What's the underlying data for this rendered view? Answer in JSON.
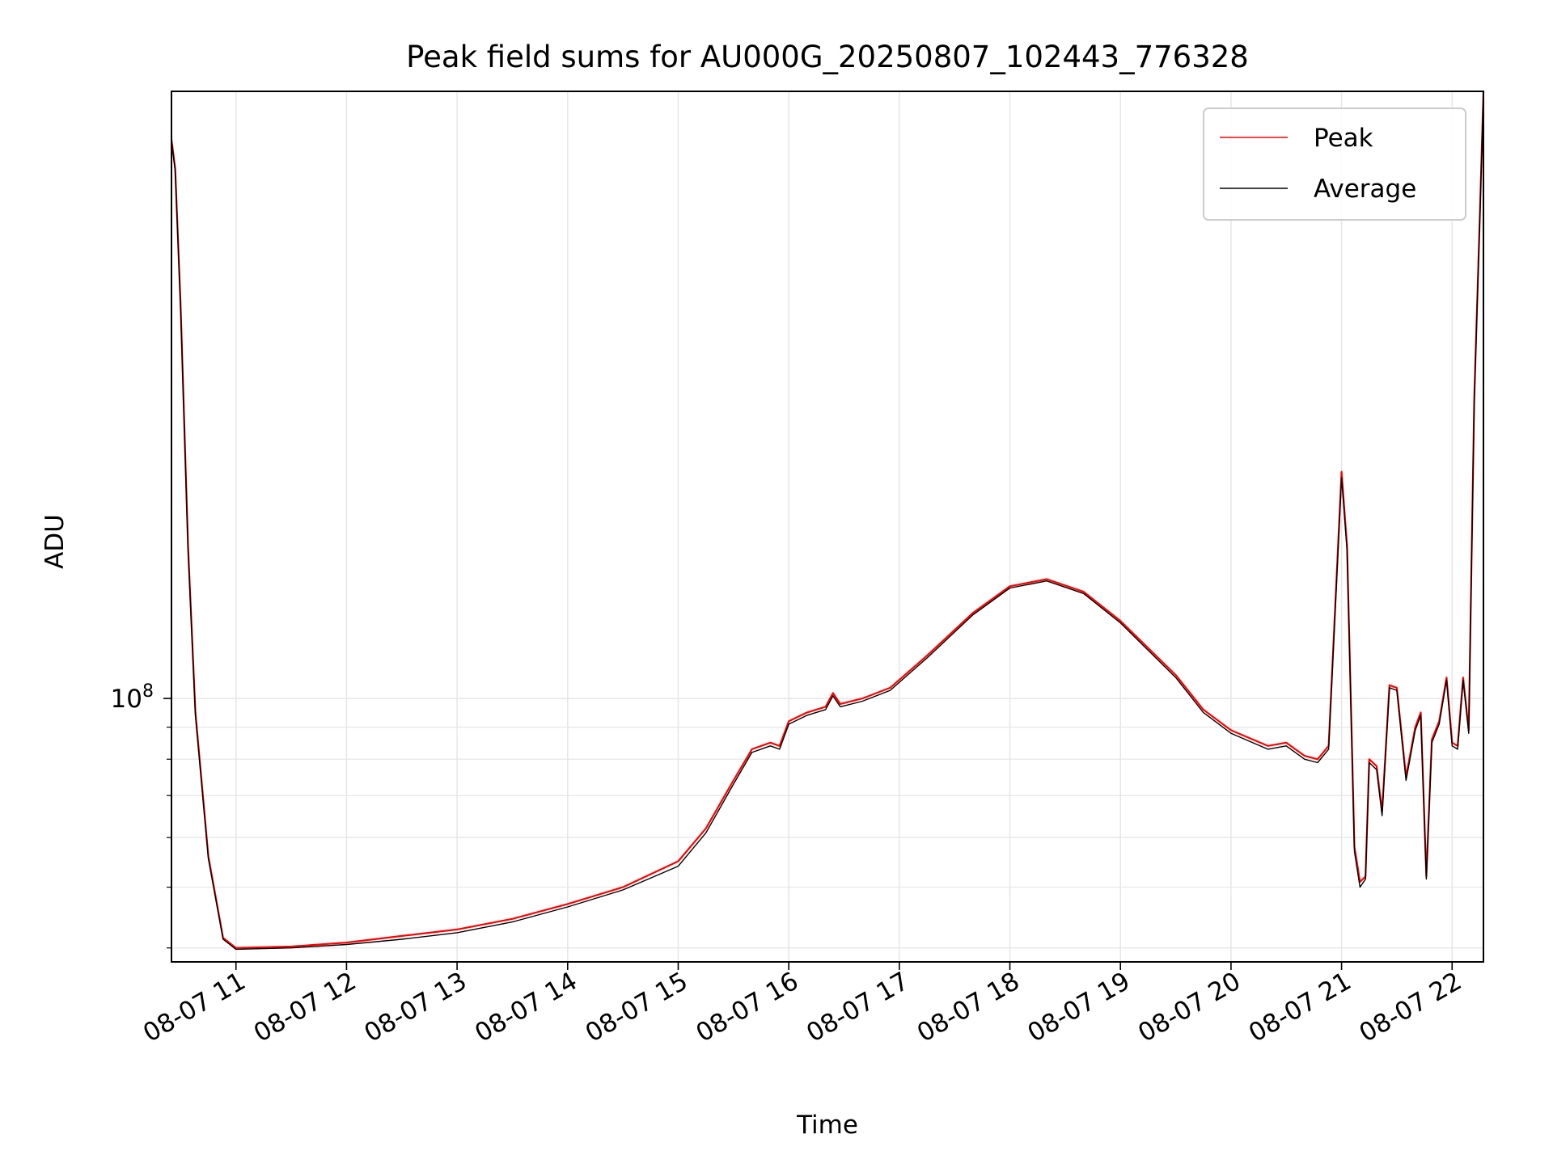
{
  "chart_data": {
    "type": "line",
    "title": "Peak field sums for AU000G_20250807_102443_776328",
    "xlabel": "Time",
    "ylabel": "ADU",
    "y_scale": "log",
    "xlim": [
      "2025-08-07T10:25",
      "2025-08-07T22:17"
    ],
    "ylim": [
      38000000,
      930000000
    ],
    "x_ticks": [
      "2025-08-07T11:00",
      "2025-08-07T12:00",
      "2025-08-07T13:00",
      "2025-08-07T14:00",
      "2025-08-07T15:00",
      "2025-08-07T16:00",
      "2025-08-07T17:00",
      "2025-08-07T18:00",
      "2025-08-07T19:00",
      "2025-08-07T20:00",
      "2025-08-07T21:00",
      "2025-08-07T22:00"
    ],
    "x_tick_labels": [
      "08-07 11",
      "08-07 12",
      "08-07 13",
      "08-07 14",
      "08-07 15",
      "08-07 16",
      "08-07 17",
      "08-07 18",
      "08-07 19",
      "08-07 20",
      "08-07 21",
      "08-07 22"
    ],
    "y_major_ticks": [
      100000000
    ],
    "y_major_tick_labels": [
      {
        "base": "10",
        "exp": "8"
      }
    ],
    "y_minor_ticks": [
      40000000,
      50000000,
      60000000,
      70000000,
      80000000,
      90000000
    ],
    "grid": true,
    "legend_position": "top-right",
    "series": [
      {
        "name": "Peak",
        "color": "#ff0000",
        "x": [
          "2025-08-07T10:25",
          "2025-08-07T10:27",
          "2025-08-07T10:30",
          "2025-08-07T10:34",
          "2025-08-07T10:38",
          "2025-08-07T10:45",
          "2025-08-07T10:53",
          "2025-08-07T11:00",
          "2025-08-07T11:30",
          "2025-08-07T12:00",
          "2025-08-07T12:30",
          "2025-08-07T13:00",
          "2025-08-07T13:30",
          "2025-08-07T14:00",
          "2025-08-07T14:30",
          "2025-08-07T15:00",
          "2025-08-07T15:15",
          "2025-08-07T15:30",
          "2025-08-07T15:40",
          "2025-08-07T15:50",
          "2025-08-07T15:55",
          "2025-08-07T16:00",
          "2025-08-07T16:10",
          "2025-08-07T16:20",
          "2025-08-07T16:24",
          "2025-08-07T16:28",
          "2025-08-07T16:40",
          "2025-08-07T16:55",
          "2025-08-07T17:15",
          "2025-08-07T17:40",
          "2025-08-07T18:00",
          "2025-08-07T18:20",
          "2025-08-07T18:40",
          "2025-08-07T19:00",
          "2025-08-07T19:30",
          "2025-08-07T19:45",
          "2025-08-07T20:00",
          "2025-08-07T20:20",
          "2025-08-07T20:30",
          "2025-08-07T20:40",
          "2025-08-07T20:47",
          "2025-08-07T20:53",
          "2025-08-07T21:00",
          "2025-08-07T21:03",
          "2025-08-07T21:07",
          "2025-08-07T21:10",
          "2025-08-07T21:13",
          "2025-08-07T21:15",
          "2025-08-07T21:19",
          "2025-08-07T21:22",
          "2025-08-07T21:26",
          "2025-08-07T21:30",
          "2025-08-07T21:35",
          "2025-08-07T21:40",
          "2025-08-07T21:43",
          "2025-08-07T21:46",
          "2025-08-07T21:49",
          "2025-08-07T21:53",
          "2025-08-07T21:57",
          "2025-08-07T22:00",
          "2025-08-07T22:03",
          "2025-08-07T22:06",
          "2025-08-07T22:09",
          "2025-08-07T22:12",
          "2025-08-07T22:15",
          "2025-08-07T22:17"
        ],
        "y": [
          780000000,
          700000000,
          420000000,
          175000000,
          95000000,
          56000000,
          41500000,
          40000000,
          40200000,
          40800000,
          41800000,
          42800000,
          44500000,
          47000000,
          50000000,
          55000000,
          62000000,
          74000000,
          83000000,
          85000000,
          84000000,
          92000000,
          95000000,
          97000000,
          102000000,
          98000000,
          100000000,
          104000000,
          117000000,
          137000000,
          151000000,
          155000000,
          148000000,
          133000000,
          109000000,
          96000000,
          89000000,
          84000000,
          85000000,
          81000000,
          80000000,
          84000000,
          230000000,
          175000000,
          58000000,
          51000000,
          52000000,
          80000000,
          78000000,
          66000000,
          105000000,
          104000000,
          75000000,
          90000000,
          95000000,
          52000000,
          86000000,
          92000000,
          108000000,
          85000000,
          84000000,
          108000000,
          89000000,
          300000000,
          580000000,
          930000000
        ]
      },
      {
        "name": "Average",
        "color": "#000000",
        "x": [
          "2025-08-07T10:25",
          "2025-08-07T10:27",
          "2025-08-07T10:30",
          "2025-08-07T10:34",
          "2025-08-07T10:38",
          "2025-08-07T10:45",
          "2025-08-07T10:53",
          "2025-08-07T11:00",
          "2025-08-07T11:30",
          "2025-08-07T12:00",
          "2025-08-07T12:30",
          "2025-08-07T13:00",
          "2025-08-07T13:30",
          "2025-08-07T14:00",
          "2025-08-07T14:30",
          "2025-08-07T15:00",
          "2025-08-07T15:15",
          "2025-08-07T15:30",
          "2025-08-07T15:40",
          "2025-08-07T15:50",
          "2025-08-07T15:55",
          "2025-08-07T16:00",
          "2025-08-07T16:10",
          "2025-08-07T16:20",
          "2025-08-07T16:24",
          "2025-08-07T16:28",
          "2025-08-07T16:40",
          "2025-08-07T16:55",
          "2025-08-07T17:15",
          "2025-08-07T17:40",
          "2025-08-07T18:00",
          "2025-08-07T18:20",
          "2025-08-07T18:40",
          "2025-08-07T19:00",
          "2025-08-07T19:30",
          "2025-08-07T19:45",
          "2025-08-07T20:00",
          "2025-08-07T20:20",
          "2025-08-07T20:30",
          "2025-08-07T20:40",
          "2025-08-07T20:47",
          "2025-08-07T20:53",
          "2025-08-07T21:00",
          "2025-08-07T21:03",
          "2025-08-07T21:07",
          "2025-08-07T21:10",
          "2025-08-07T21:13",
          "2025-08-07T21:15",
          "2025-08-07T21:19",
          "2025-08-07T21:22",
          "2025-08-07T21:26",
          "2025-08-07T21:30",
          "2025-08-07T21:35",
          "2025-08-07T21:40",
          "2025-08-07T21:43",
          "2025-08-07T21:46",
          "2025-08-07T21:49",
          "2025-08-07T21:53",
          "2025-08-07T21:57",
          "2025-08-07T22:00",
          "2025-08-07T22:03",
          "2025-08-07T22:06",
          "2025-08-07T22:09",
          "2025-08-07T22:12",
          "2025-08-07T22:15",
          "2025-08-07T22:17"
        ],
        "y": [
          775000000,
          695000000,
          415000000,
          172000000,
          94000000,
          55500000,
          41300000,
          39800000,
          40000000,
          40500000,
          41300000,
          42300000,
          44000000,
          46500000,
          49500000,
          54000000,
          61000000,
          73000000,
          82000000,
          84000000,
          83000000,
          91000000,
          94000000,
          96000000,
          101000000,
          97000000,
          99000000,
          103000000,
          116000000,
          136000000,
          150000000,
          154000000,
          147000000,
          132000000,
          108000000,
          95000000,
          88000000,
          83000000,
          84000000,
          80000000,
          79000000,
          83000000,
          225000000,
          172000000,
          57000000,
          50000000,
          51500000,
          79000000,
          77000000,
          65000000,
          104000000,
          103000000,
          74000000,
          89000000,
          94000000,
          51500000,
          85000000,
          91000000,
          107000000,
          84000000,
          83000000,
          107000000,
          88000000,
          295000000,
          575000000,
          920000000
        ]
      }
    ]
  }
}
